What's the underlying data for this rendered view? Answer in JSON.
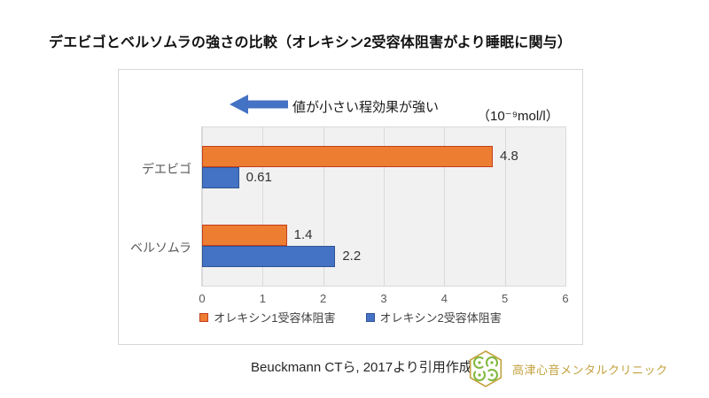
{
  "page": {
    "title": "デエビゴとベルソムラの強さの比較（オレキシン2受容体阻害がより睡眠に関与）"
  },
  "chart_data": {
    "type": "bar",
    "orientation": "horizontal",
    "title": "",
    "annotation": "値が小さい程効果が強い",
    "unit": "（10⁻⁹mol/l）",
    "categories": [
      "デエビゴ",
      "ベルソムラ"
    ],
    "series": [
      {
        "name": "オレキシン1受容体阻害",
        "values": [
          4.8,
          1.4
        ],
        "fill": "#ED7D31",
        "border": "#C43E1C"
      },
      {
        "name": "オレキシン2受容体阻害",
        "values": [
          0.61,
          2.2
        ],
        "fill": "#4472C4",
        "border": "#2F5597"
      }
    ],
    "xlim": [
      0,
      6
    ],
    "xticks": [
      0,
      1,
      2,
      3,
      4,
      5,
      6
    ],
    "grid": true,
    "legend_position": "bottom"
  },
  "icons": {
    "left_arrow": "block-arrow-left",
    "logo": "hexagon-flower"
  },
  "colors": {
    "arrow": "#4472C4",
    "plot_bg": "#F1F1F1",
    "grid": "#D9D9D9",
    "gold": "#C3A23E",
    "logo_green": "#7FB83D"
  },
  "footer": {
    "source": "Beuckmann CTら, 2017より引用作成",
    "clinic": "高津心音メンタルクリニック"
  }
}
